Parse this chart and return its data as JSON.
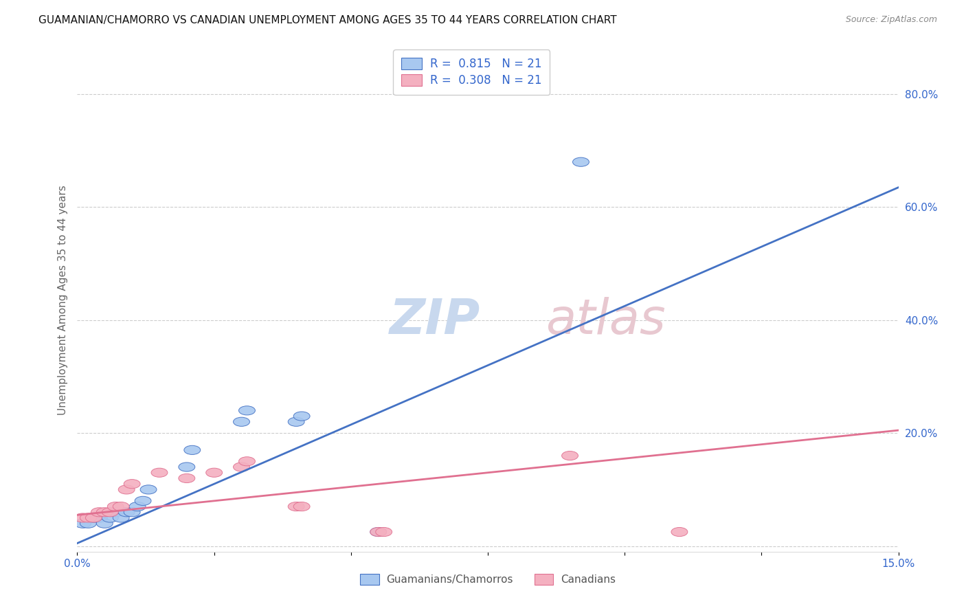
{
  "title": "GUAMANIAN/CHAMORRO VS CANADIAN UNEMPLOYMENT AMONG AGES 35 TO 44 YEARS CORRELATION CHART",
  "source": "Source: ZipAtlas.com",
  "ylabel": "Unemployment Among Ages 35 to 44 years",
  "right_yticks": [
    0.0,
    0.2,
    0.4,
    0.6,
    0.8
  ],
  "right_ylabels": [
    "",
    "20.0%",
    "40.0%",
    "60.0%",
    "80.0%"
  ],
  "xlim": [
    0.0,
    0.15
  ],
  "ylim": [
    -0.01,
    0.88
  ],
  "blue_color": "#a8c8f0",
  "pink_color": "#f4b0c0",
  "blue_line_color": "#4472c4",
  "pink_line_color": "#e07090",
  "legend_color": "#3366cc",
  "watermark_zip_color": "#c8d8ee",
  "watermark_atlas_color": "#e8c8d0",
  "guamanian_x": [
    0.001,
    0.002,
    0.003,
    0.004,
    0.005,
    0.006,
    0.007,
    0.008,
    0.009,
    0.01,
    0.011,
    0.012,
    0.013,
    0.02,
    0.021,
    0.03,
    0.031,
    0.04,
    0.041,
    0.055,
    0.092
  ],
  "guamanian_y": [
    0.04,
    0.04,
    0.05,
    0.05,
    0.04,
    0.05,
    0.06,
    0.05,
    0.06,
    0.06,
    0.07,
    0.08,
    0.1,
    0.14,
    0.17,
    0.22,
    0.24,
    0.22,
    0.23,
    0.025,
    0.68
  ],
  "canadian_x": [
    0.001,
    0.002,
    0.003,
    0.004,
    0.005,
    0.006,
    0.007,
    0.008,
    0.009,
    0.01,
    0.015,
    0.02,
    0.025,
    0.03,
    0.031,
    0.04,
    0.041,
    0.055,
    0.056,
    0.09,
    0.11
  ],
  "canadian_y": [
    0.05,
    0.05,
    0.05,
    0.06,
    0.06,
    0.06,
    0.07,
    0.07,
    0.1,
    0.11,
    0.13,
    0.12,
    0.13,
    0.14,
    0.15,
    0.07,
    0.07,
    0.025,
    0.025,
    0.16,
    0.025
  ],
  "blue_line_x0": 0.0,
  "blue_line_y0": 0.005,
  "blue_line_x1": 0.15,
  "blue_line_y1": 0.635,
  "pink_line_x0": 0.0,
  "pink_line_y0": 0.055,
  "pink_line_x1": 0.15,
  "pink_line_y1": 0.205
}
